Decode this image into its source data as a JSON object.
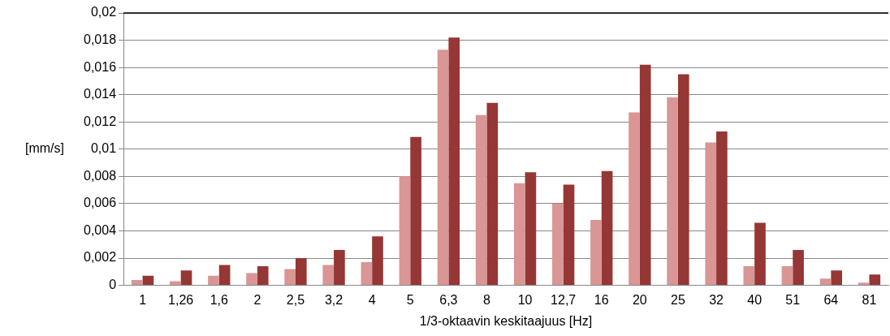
{
  "chart_data": {
    "type": "bar",
    "xlabel": "1/3-oktaavin keskitaajuus [Hz]",
    "ylabel": "[mm/s]",
    "categories": [
      "1",
      "1,26",
      "1,6",
      "2",
      "2,5",
      "3,2",
      "4",
      "5",
      "6,3",
      "8",
      "10",
      "12,7",
      "16",
      "20",
      "25",
      "32",
      "40",
      "51",
      "64",
      "81"
    ],
    "series": [
      {
        "color": "#d99694",
        "values": [
          0.0004,
          0.0003,
          0.0007,
          0.0009,
          0.0012,
          0.0015,
          0.0017,
          0.008,
          0.0173,
          0.0125,
          0.0075,
          0.006,
          0.0048,
          0.0127,
          0.0138,
          0.0105,
          0.0014,
          0.0014,
          0.0005,
          0.0002
        ]
      },
      {
        "color": "#953735",
        "values": [
          0.0007,
          0.0011,
          0.0015,
          0.0014,
          0.002,
          0.0026,
          0.0036,
          0.0109,
          0.0182,
          0.0134,
          0.0083,
          0.0074,
          0.0084,
          0.0162,
          0.0155,
          0.0113,
          0.0046,
          0.0026,
          0.0011,
          0.0008
        ]
      }
    ],
    "ylim": [
      0,
      0.02
    ],
    "yticks": [
      0,
      {
        "value": 0.002,
        "label": "0,002"
      },
      {
        "value": 0.004,
        "label": "0,004"
      },
      {
        "value": 0.006,
        "label": "0,006"
      },
      {
        "value": 0.008,
        "label": "0,008"
      },
      {
        "value": 0.01,
        "label": "0,01"
      },
      {
        "value": 0.012,
        "label": "0,012"
      },
      {
        "value": 0.014,
        "label": "0,014"
      },
      {
        "value": 0.016,
        "label": "0,016"
      },
      {
        "value": 0.018,
        "label": "0,018"
      },
      {
        "value": 0.02,
        "label": "0,02"
      }
    ],
    "grid": "y",
    "legend": false
  }
}
